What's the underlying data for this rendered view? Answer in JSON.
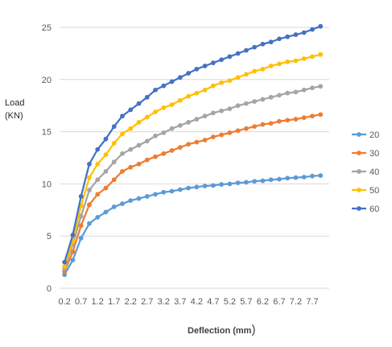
{
  "chart_data": {
    "type": "line",
    "title": "",
    "xlabel": "Deflection (mm",
    "xlabel_paren": ")",
    "ylabel_line1": "Load",
    "ylabel_line2": "(KN)",
    "ylim": [
      0,
      25
    ],
    "y_ticks": [
      "0",
      "5",
      "10",
      "15",
      "20",
      "25"
    ],
    "x_tick_labels": [
      "0.2",
      "0.7",
      "1.2",
      "1.7",
      "2.2",
      "2.7",
      "3.2",
      "3.7",
      "4.2",
      "4.7",
      "5.2",
      "5.7",
      "6.2",
      "6.7",
      "7.2",
      "7.7"
    ],
    "x": [
      0.2,
      0.45,
      0.7,
      0.95,
      1.2,
      1.45,
      1.7,
      1.95,
      2.2,
      2.45,
      2.7,
      2.95,
      3.2,
      3.45,
      3.7,
      3.95,
      4.2,
      4.45,
      4.7,
      4.95,
      5.2,
      5.45,
      5.7,
      5.95,
      6.2,
      6.45,
      6.7,
      6.95,
      7.2,
      7.45,
      7.7,
      7.95
    ],
    "grid": true,
    "legend_position": "right",
    "series": [
      {
        "name": "20",
        "color": "#5B9BD5",
        "values": [
          1.3,
          2.7,
          4.8,
          6.2,
          6.8,
          7.3,
          7.8,
          8.1,
          8.4,
          8.6,
          8.8,
          9.0,
          9.2,
          9.3,
          9.45,
          9.6,
          9.7,
          9.8,
          9.85,
          9.95,
          10.0,
          10.1,
          10.15,
          10.25,
          10.3,
          10.4,
          10.45,
          10.55,
          10.6,
          10.65,
          10.75,
          10.8
        ]
      },
      {
        "name": "30",
        "color": "#ED7D31",
        "values": [
          1.6,
          3.5,
          6.0,
          8.0,
          9.0,
          9.6,
          10.4,
          11.2,
          11.6,
          11.9,
          12.3,
          12.6,
          12.9,
          13.2,
          13.5,
          13.8,
          14.0,
          14.2,
          14.5,
          14.7,
          14.9,
          15.1,
          15.3,
          15.5,
          15.7,
          15.8,
          16.0,
          16.1,
          16.2,
          16.35,
          16.5,
          16.65
        ]
      },
      {
        "name": "40",
        "color": "#A5A5A5",
        "values": [
          1.9,
          4.2,
          6.9,
          9.4,
          10.4,
          11.2,
          12.1,
          12.9,
          13.3,
          13.7,
          14.1,
          14.6,
          14.9,
          15.3,
          15.6,
          15.9,
          16.2,
          16.5,
          16.8,
          17.0,
          17.2,
          17.5,
          17.7,
          17.9,
          18.1,
          18.3,
          18.5,
          18.7,
          18.8,
          19.0,
          19.2,
          19.35
        ]
      },
      {
        "name": "50",
        "color": "#FFC000",
        "values": [
          2.1,
          4.5,
          7.9,
          10.6,
          11.9,
          12.8,
          13.9,
          14.8,
          15.3,
          15.9,
          16.4,
          16.9,
          17.3,
          17.6,
          18.0,
          18.4,
          18.7,
          19.0,
          19.4,
          19.7,
          19.9,
          20.2,
          20.5,
          20.8,
          21.0,
          21.3,
          21.5,
          21.7,
          21.8,
          22.0,
          22.2,
          22.4
        ]
      },
      {
        "name": "60",
        "color": "#4472C4",
        "values": [
          2.5,
          5.1,
          8.8,
          11.9,
          13.3,
          14.3,
          15.5,
          16.5,
          17.1,
          17.7,
          18.3,
          19.0,
          19.4,
          19.8,
          20.2,
          20.6,
          21.0,
          21.3,
          21.6,
          21.9,
          22.2,
          22.5,
          22.8,
          23.1,
          23.4,
          23.6,
          23.9,
          24.1,
          24.3,
          24.5,
          24.8,
          25.1
        ]
      }
    ]
  }
}
